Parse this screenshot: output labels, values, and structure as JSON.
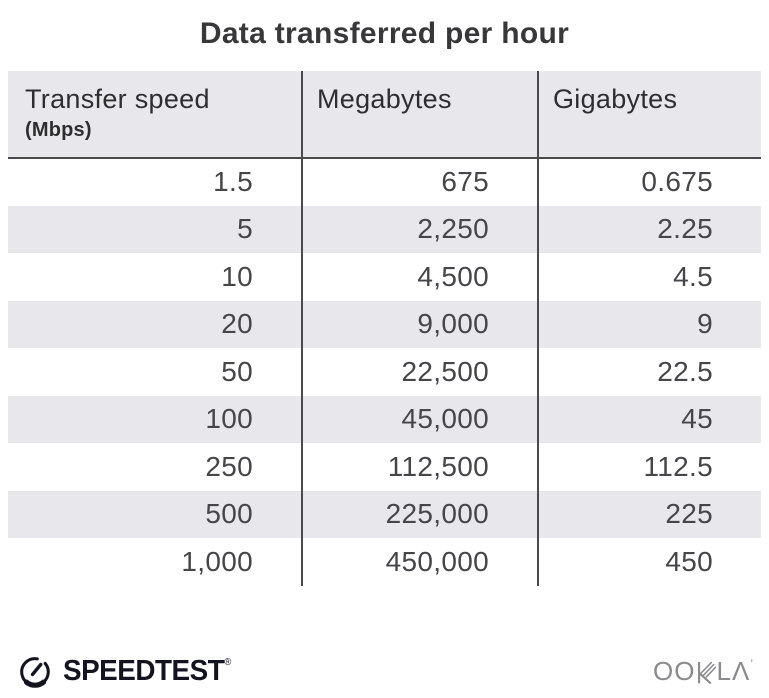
{
  "page": {
    "title": "Data transferred per hour"
  },
  "chart_data": {
    "type": "table",
    "title": "Data transferred per hour",
    "columns": [
      "Transfer speed (Mbps)",
      "Megabytes",
      "Gigabytes"
    ],
    "rows": [
      [
        1.5,
        675,
        0.675
      ],
      [
        5,
        2250,
        2.25
      ],
      [
        10,
        4500,
        4.5
      ],
      [
        20,
        9000,
        9
      ],
      [
        50,
        22500,
        22.5
      ],
      [
        100,
        45000,
        45
      ],
      [
        250,
        112500,
        112.5
      ],
      [
        500,
        225000,
        225
      ],
      [
        1000,
        450000,
        450
      ]
    ]
  },
  "table": {
    "header": {
      "col1_label": "Transfer speed",
      "col1_sublabel": "(Mbps)",
      "col2_label": "Megabytes",
      "col3_label": "Gigabytes"
    },
    "rows": [
      [
        "1.5",
        "675",
        "0.675"
      ],
      [
        "5",
        "2,250",
        "2.25"
      ],
      [
        "10",
        "4,500",
        "4.5"
      ],
      [
        "20",
        "9,000",
        "9"
      ],
      [
        "50",
        "22,500",
        "22.5"
      ],
      [
        "100",
        "45,000",
        "45"
      ],
      [
        "250",
        "112,500",
        "112.5"
      ],
      [
        "500",
        "225,000",
        "225"
      ],
      [
        "1,000",
        "450,000",
        "450"
      ]
    ]
  },
  "footer": {
    "speedtest_label": "SPEEDTEST",
    "speedtest_trademark": "®",
    "ookla_label": "OOKLA",
    "ookla_prefix": "OO",
    "ookla_suffix": "LΛ",
    "ookla_trademark": "’"
  },
  "colors": {
    "header_bg": "#e8e8ec",
    "zebra_bg": "#e8e8ec",
    "divider": "#4a4a4c",
    "title_text": "#38383b",
    "header_text": "#2e2e31",
    "body_text": "#46464a",
    "speedtest_color": "#13141f",
    "ookla_color": "#8b8b8e"
  }
}
